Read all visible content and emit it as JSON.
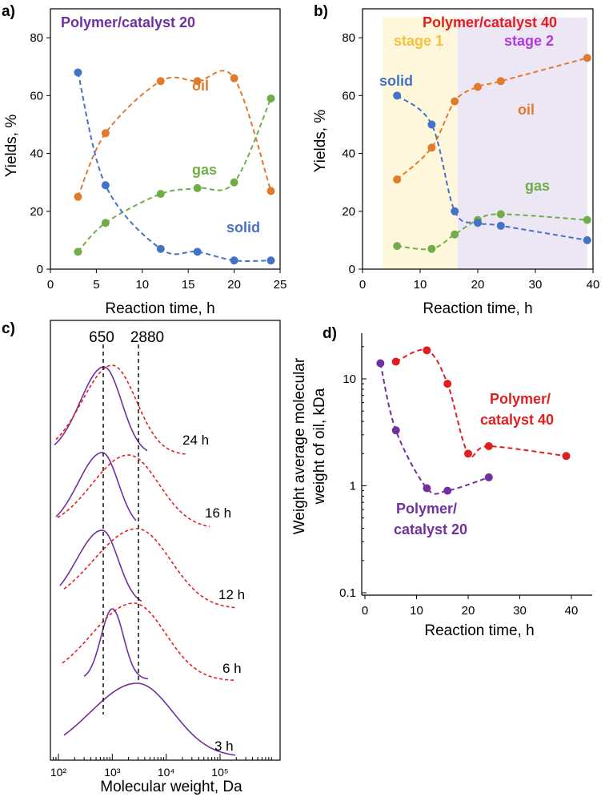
{
  "colors": {
    "oil": "#E07B2E",
    "solid": "#4472C4",
    "gas": "#70AD47",
    "purple": "#7030A0",
    "red": "#E02020",
    "title40": "#E02020",
    "title20": "#7030A0",
    "stage1": "#FFF7DC",
    "stage2": "#EDE6F4",
    "stage1_text": "#F3C13A",
    "stage2_text": "#B03AE0"
  },
  "panels": {
    "a": {
      "label": "a)",
      "title": "Polymer/catalyst 20",
      "annotations": {
        "oil": "oil",
        "gas": "gas",
        "solid": "solid"
      }
    },
    "b": {
      "label": "b)",
      "title": "Polymer/catalyst 40",
      "stage1": "stage 1",
      "stage2": "stage 2",
      "annotations": {
        "oil": "oil",
        "gas": "gas",
        "solid": "solid"
      }
    },
    "c": {
      "label": "c)",
      "marker1": "650",
      "marker2": "2880",
      "time_labels": [
        "24 h",
        "16 h",
        "12 h",
        "6 h",
        "3 h"
      ]
    },
    "d": {
      "label": "d)",
      "label40": [
        "Polymer/",
        "catalyst 40"
      ],
      "label20": [
        "Polymer/",
        "catalyst 20"
      ]
    }
  },
  "chart_data": [
    {
      "id": "a",
      "type": "scatter",
      "title": "Polymer/catalyst 20",
      "xlabel": "Reaction time, h",
      "ylabel": "Yields, %",
      "xlim": [
        0,
        25
      ],
      "ylim": [
        0,
        90
      ],
      "xticks": [
        0,
        5,
        10,
        15,
        20,
        25
      ],
      "yticks": [
        0,
        20,
        40,
        60,
        80
      ],
      "series": [
        {
          "name": "oil",
          "x": [
            3,
            6,
            12,
            16,
            20,
            24
          ],
          "y": [
            25,
            47,
            65,
            65,
            66,
            27
          ]
        },
        {
          "name": "gas",
          "x": [
            3,
            6,
            12,
            16,
            20,
            24
          ],
          "y": [
            6,
            16,
            26,
            28,
            30,
            59
          ]
        },
        {
          "name": "solid",
          "x": [
            3,
            6,
            12,
            16,
            20,
            24
          ],
          "y": [
            68,
            29,
            7,
            6,
            3,
            3
          ]
        }
      ]
    },
    {
      "id": "b",
      "type": "scatter",
      "title": "Polymer/catalyst 40",
      "xlabel": "Reaction time, h",
      "ylabel": "Yields, %",
      "xlim": [
        0,
        40
      ],
      "ylim": [
        0,
        90
      ],
      "xticks": [
        0,
        10,
        20,
        30,
        40
      ],
      "yticks": [
        0,
        20,
        40,
        60,
        80
      ],
      "stage1_range": [
        3.5,
        16.5
      ],
      "stage2_range": [
        16.5,
        39
      ],
      "series": [
        {
          "name": "oil",
          "x": [
            6,
            12,
            16,
            20,
            24,
            39
          ],
          "y": [
            31,
            42,
            58,
            63,
            65,
            73
          ]
        },
        {
          "name": "gas",
          "x": [
            6,
            12,
            16,
            20,
            24,
            39
          ],
          "y": [
            8,
            7,
            12,
            17,
            19,
            17
          ]
        },
        {
          "name": "solid",
          "x": [
            6,
            12,
            16,
            20,
            24,
            39
          ],
          "y": [
            60,
            50,
            20,
            16,
            15,
            10
          ]
        }
      ]
    },
    {
      "id": "c",
      "type": "line",
      "xlabel": "Molecular weight, Da",
      "xscale": "log",
      "xticks": [
        "10²",
        "10³",
        "10⁴",
        "10⁵"
      ],
      "markers_da": [
        650,
        2880
      ],
      "series": [
        {
          "name": "24 h",
          "purple_peak_da": 700,
          "red_peak_da": 1000
        },
        {
          "name": "16 h",
          "purple_peak_da": 650,
          "red_peak_da": 2000
        },
        {
          "name": "12 h",
          "purple_peak_da": 650,
          "red_peak_da": 2880
        },
        {
          "name": "6 h",
          "purple_peak_da": 1000,
          "red_peak_da": 2500
        },
        {
          "name": "3 h",
          "purple_peak_da": 2880
        }
      ]
    },
    {
      "id": "d",
      "type": "scatter",
      "xlabel": "Reaction time, h",
      "ylabel": "Weight average molecular weight of oil, kDa",
      "ylabel_lines": [
        "Weight average molecular",
        "weight of oil, kDa"
      ],
      "xlim": [
        0,
        44
      ],
      "ylim": [
        0.1,
        30
      ],
      "yscale": "log",
      "xticks": [
        0,
        10,
        20,
        30,
        40
      ],
      "yticks": [
        0.1,
        1,
        10
      ],
      "series": [
        {
          "name": "Polymer/catalyst 40",
          "x": [
            6,
            12,
            16,
            20,
            24,
            39
          ],
          "y": [
            14.5,
            18.5,
            9,
            2,
            2.35,
            1.9
          ]
        },
        {
          "name": "Polymer/catalyst 20",
          "x": [
            3,
            6,
            12,
            16,
            24
          ],
          "y": [
            14,
            3.3,
            0.95,
            0.9,
            1.2
          ]
        }
      ]
    }
  ]
}
